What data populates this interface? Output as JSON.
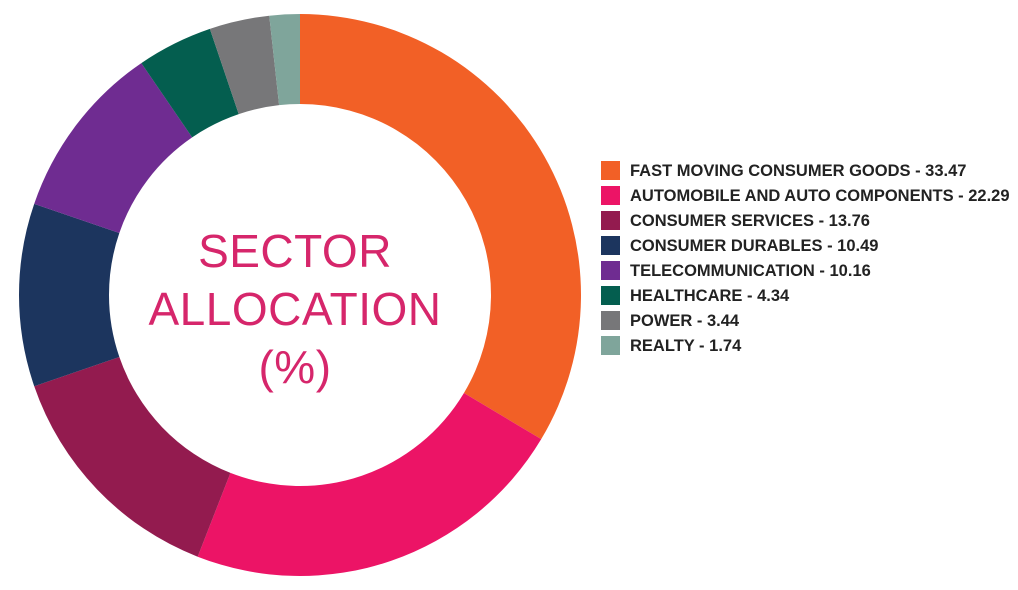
{
  "chart_data": {
    "type": "pie",
    "title_lines": [
      "SECTOR",
      "ALLOCATION",
      "(%)"
    ],
    "legend_position": "right",
    "slices": [
      {
        "label": "FAST MOVING CONSUMER GOODS - 33.47",
        "value": 33.47,
        "color": "#f26026"
      },
      {
        "label": "AUTOMOBILE AND AUTO COMPONENTS - 22.29",
        "value": 22.29,
        "color": "#ec1466"
      },
      {
        "label": "CONSUMER SERVICES - 13.76",
        "value": 13.76,
        "color": "#931b4f"
      },
      {
        "label": "CONSUMER DURABLES - 10.49",
        "value": 10.49,
        "color": "#1c355e"
      },
      {
        "label": "TELECOMMUNICATION - 10.16",
        "value": 10.16,
        "color": "#6f2c91"
      },
      {
        "label": "HEALTHCARE - 4.34",
        "value": 4.34,
        "color": "#045e4f"
      },
      {
        "label": "POWER - 3.44",
        "value": 3.44,
        "color": "#777779"
      },
      {
        "label": "REALTY - 1.74",
        "value": 1.74,
        "color": "#7fa59b"
      }
    ]
  }
}
